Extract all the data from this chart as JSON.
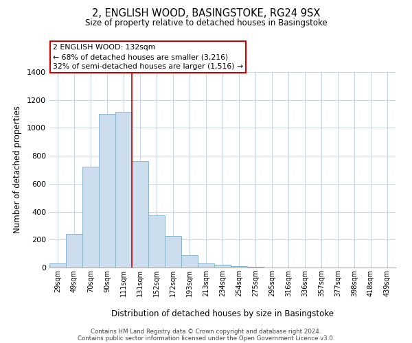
{
  "title1": "2, ENGLISH WOOD, BASINGSTOKE, RG24 9SX",
  "title2": "Size of property relative to detached houses in Basingstoke",
  "xlabel": "Distribution of detached houses by size in Basingstoke",
  "ylabel": "Number of detached properties",
  "footer1": "Contains HM Land Registry data © Crown copyright and database right 2024.",
  "footer2": "Contains public sector information licensed under the Open Government Licence v3.0.",
  "bar_labels": [
    "29sqm",
    "49sqm",
    "70sqm",
    "90sqm",
    "111sqm",
    "131sqm",
    "152sqm",
    "172sqm",
    "193sqm",
    "213sqm",
    "234sqm",
    "254sqm",
    "275sqm",
    "295sqm",
    "316sqm",
    "336sqm",
    "357sqm",
    "377sqm",
    "398sqm",
    "418sqm",
    "439sqm"
  ],
  "bar_values": [
    30,
    240,
    720,
    1100,
    1115,
    760,
    375,
    228,
    90,
    30,
    18,
    10,
    4,
    0,
    0,
    0,
    0,
    0,
    0,
    0,
    0
  ],
  "bar_color": "#ccdded",
  "bar_edge_color": "#8ab4cc",
  "highlight_index": 5,
  "highlight_line_color": "#cc0000",
  "ylim": [
    0,
    1400
  ],
  "yticks": [
    0,
    200,
    400,
    600,
    800,
    1000,
    1200,
    1400
  ],
  "annotation_title": "2 ENGLISH WOOD: 132sqm",
  "annotation_line1": "← 68% of detached houses are smaller (3,216)",
  "annotation_line2": "32% of semi-detached houses are larger (1,516) →",
  "box_edge_color": "#cc0000",
  "background_color": "#ffffff",
  "grid_color": "#c8d4de"
}
